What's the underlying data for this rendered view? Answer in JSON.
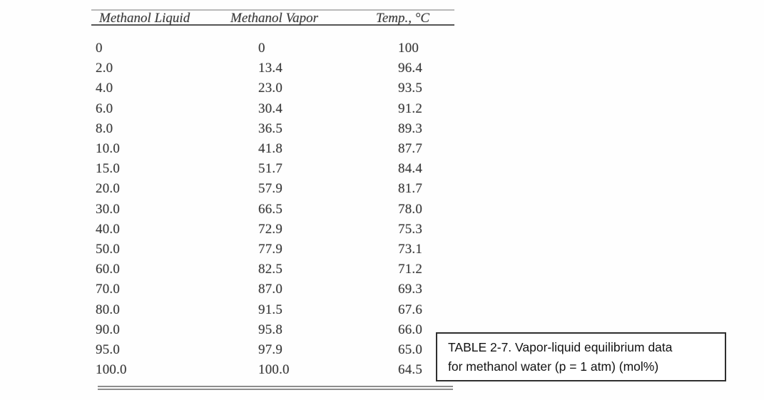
{
  "table": {
    "columns": [
      "Methanol Liquid",
      "Methanol Vapor",
      "Temp., °C"
    ],
    "rows": [
      [
        "0",
        "0",
        "100"
      ],
      [
        "2.0",
        "13.4",
        "96.4"
      ],
      [
        "4.0",
        "23.0",
        "93.5"
      ],
      [
        "6.0",
        "30.4",
        "91.2"
      ],
      [
        "8.0",
        "36.5",
        "89.3"
      ],
      [
        "10.0",
        "41.8",
        "87.7"
      ],
      [
        "15.0",
        "51.7",
        "84.4"
      ],
      [
        "20.0",
        "57.9",
        "81.7"
      ],
      [
        "30.0",
        "66.5",
        "78.0"
      ],
      [
        "40.0",
        "72.9",
        "75.3"
      ],
      [
        "50.0",
        "77.9",
        "73.1"
      ],
      [
        "60.0",
        "82.5",
        "71.2"
      ],
      [
        "70.0",
        "87.0",
        "69.3"
      ],
      [
        "80.0",
        "91.5",
        "67.6"
      ],
      [
        "90.0",
        "95.8",
        "66.0"
      ],
      [
        "95.0",
        "97.9",
        "65.0"
      ],
      [
        "100.0",
        "100.0",
        "64.5"
      ]
    ]
  },
  "caption": {
    "line1": "TABLE 2-7. Vapor-liquid equilibrium data",
    "line2": "for methanol water (p = 1 atm) (mol%)"
  },
  "colors": {
    "table_text": "#383838",
    "rule_top": "#b9b9b9",
    "rule_header": "#555555",
    "rule_bottom_double": "#8d8d8d",
    "caption_border": "#2e2e2e",
    "background": "#fefefe"
  }
}
